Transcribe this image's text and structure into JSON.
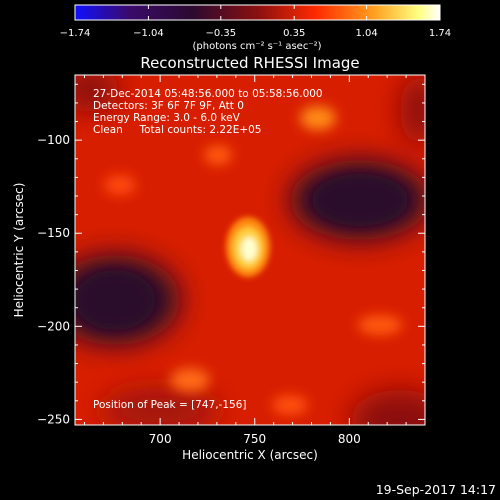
{
  "chart_data": {
    "type": "heatmap",
    "title": "Reconstructed RHESSI Image",
    "xlabel": "Heliocentric X (arcsec)",
    "ylabel": "Heliocentric Y (arcsec)",
    "xlim": [
      655,
      840
    ],
    "ylim": [
      -253,
      -65
    ],
    "x_ticks": [
      700,
      750,
      800
    ],
    "y_ticks": [
      -100,
      -150,
      -200,
      -250
    ],
    "x_tick_labels": [
      "700",
      "750",
      "800"
    ],
    "y_tick_labels": [
      "−100",
      "−150",
      "−200",
      "−250"
    ],
    "colorbar": {
      "min": -1.74,
      "max": 1.74,
      "ticks": [
        -1.74,
        -1.04,
        -0.35,
        0.35,
        1.04,
        1.74
      ],
      "tick_labels": [
        "−1.74",
        "−1.04",
        "−0.35",
        "0.35",
        "1.04",
        "1.74"
      ],
      "unit_label": "(photons cm⁻² s⁻¹ asec⁻²)",
      "colors": [
        "#1010ff",
        "#3a0a50",
        "#2a0a2a",
        "#8a1010",
        "#ff2a00",
        "#ffa020",
        "#ffff80",
        "#ffffff"
      ]
    },
    "annotations": [
      "27-Dec-2014 05:48:56.000 to 05:58:56.000",
      "Detectors: 3F 6F 7F 9F, Att 0",
      "Energy Range: 3.0 - 6.0 keV",
      "Clean     Total counts: 2.22E+05"
    ],
    "peak_label": "Position of Peak = [747,-156]",
    "peak": [
      747,
      -156
    ],
    "timestamp": "19-Sep-2017 14:17"
  }
}
